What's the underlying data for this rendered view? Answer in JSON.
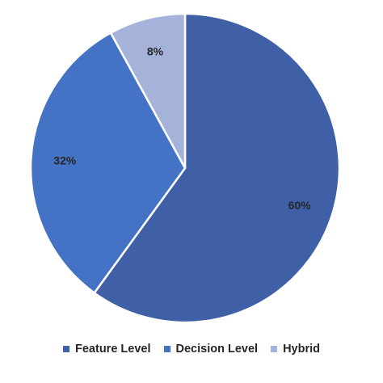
{
  "chart_data": {
    "type": "pie",
    "series": [
      {
        "name": "Feature Level",
        "value": 60,
        "label": "60%",
        "color": "#3F5FA7"
      },
      {
        "name": "Decision Level",
        "value": 32,
        "label": "32%",
        "color": "#4472C4"
      },
      {
        "name": "Hybrid",
        "value": 8,
        "label": "8%",
        "color": "#A5B3DA"
      }
    ],
    "start_angle_deg": 0,
    "direction": "clockwise",
    "legend_position": "bottom",
    "slice_border_color": "#FFFFFF"
  }
}
